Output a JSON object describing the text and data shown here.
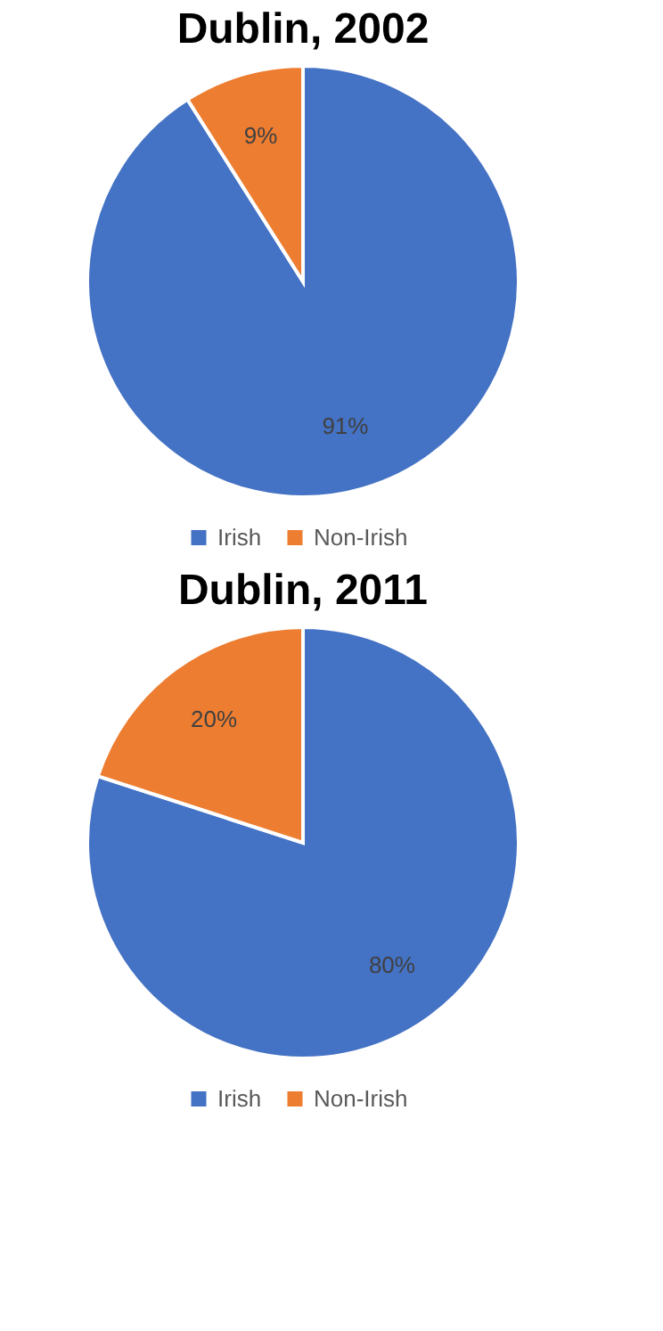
{
  "chart_data": [
    {
      "type": "pie",
      "title": "Dublin, 2002",
      "categories": [
        "Irish",
        "Non-Irish"
      ],
      "values": [
        91,
        9
      ],
      "colors": [
        "#4472c4",
        "#ed7d31"
      ],
      "value_labels": [
        "91%",
        "9%"
      ],
      "legend": "bottom"
    },
    {
      "type": "pie",
      "title": "Dublin, 2011",
      "categories": [
        "Irish",
        "Non-Irish"
      ],
      "values": [
        80,
        20
      ],
      "colors": [
        "#4472c4",
        "#ed7d31"
      ],
      "value_labels": [
        "80%",
        "20%"
      ],
      "legend": "bottom"
    }
  ]
}
